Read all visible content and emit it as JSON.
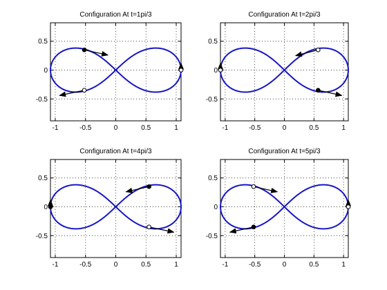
{
  "colors": {
    "curve": "#1515c8",
    "marker": "#000000",
    "axes": "#000000",
    "background": "#ffffff"
  },
  "chart_data": [
    {
      "type": "line",
      "title": "Configuration At t=1pi/3",
      "xlabel": "",
      "ylabel": "",
      "xlim": [
        -1.08,
        1.08
      ],
      "ylim": [
        -0.88,
        0.82
      ],
      "xticks": [
        -1,
        -0.5,
        0,
        0.5,
        1
      ],
      "xtick_labels": [
        "-1",
        "-0.5",
        "0",
        "0.5",
        "1"
      ],
      "yticks": [
        -0.5,
        0,
        0.5
      ],
      "ytick_labels": [
        "-0.5",
        "0",
        "0.5"
      ],
      "grid": true,
      "series": [
        {
          "curve": "lemniscate",
          "a": 1.08
        }
      ],
      "points": [
        {
          "x": -0.52,
          "y": 0.35,
          "filled": true,
          "vx": 0.39,
          "vy": -0.09
        },
        {
          "x": -0.52,
          "y": -0.35,
          "filled": false,
          "vx": -0.41,
          "vy": -0.09
        },
        {
          "x": 1.08,
          "y": 0.0,
          "filled": false,
          "vx": 0.0,
          "vy": 0.12
        }
      ]
    },
    {
      "type": "line",
      "title": "Configuration At t=2pi/3",
      "xlabel": "",
      "ylabel": "",
      "xlim": [
        -1.08,
        1.08
      ],
      "ylim": [
        -0.88,
        0.82
      ],
      "xticks": [
        -1,
        -0.5,
        0,
        0.5,
        1
      ],
      "xtick_labels": [
        "-1",
        "-0.5",
        "0",
        "0.5",
        "1"
      ],
      "yticks": [
        -0.5,
        0,
        0.5
      ],
      "ytick_labels": [
        "-0.5",
        "0",
        "0.5"
      ],
      "grid": true,
      "series": [
        {
          "curve": "lemniscate",
          "a": 1.08
        }
      ],
      "points": [
        {
          "x": 0.57,
          "y": 0.35,
          "filled": false,
          "vx": -0.38,
          "vy": -0.1
        },
        {
          "x": 0.57,
          "y": -0.35,
          "filled": true,
          "vx": 0.4,
          "vy": -0.09
        },
        {
          "x": -1.08,
          "y": 0.0,
          "filled": false,
          "vx": 0.0,
          "vy": 0.12
        }
      ]
    },
    {
      "type": "line",
      "title": "Configuration At t=4pi/3",
      "xlabel": "",
      "ylabel": "",
      "xlim": [
        -1.08,
        1.08
      ],
      "ylim": [
        -0.88,
        0.82
      ],
      "xticks": [
        -1,
        -0.5,
        0,
        0.5,
        1
      ],
      "xtick_labels": [
        "-1",
        "-0.5",
        "0",
        "0.5",
        "1"
      ],
      "yticks": [
        -0.5,
        0,
        0.5
      ],
      "ytick_labels": [
        "-0.5",
        "0",
        "0.5"
      ],
      "grid": true,
      "series": [
        {
          "curve": "lemniscate",
          "a": 1.08
        }
      ],
      "points": [
        {
          "x": 0.55,
          "y": 0.35,
          "filled": true,
          "vx": -0.38,
          "vy": -0.09
        },
        {
          "x": 0.55,
          "y": -0.35,
          "filled": false,
          "vx": 0.41,
          "vy": -0.09
        },
        {
          "x": -1.08,
          "y": 0.0,
          "filled": true,
          "vx": 0.0,
          "vy": 0.12
        }
      ]
    },
    {
      "type": "line",
      "title": "Configuration At t=5pi/3",
      "xlabel": "",
      "ylabel": "",
      "xlim": [
        -1.08,
        1.08
      ],
      "ylim": [
        -0.88,
        0.82
      ],
      "xticks": [
        -1,
        -0.5,
        0,
        0.5,
        1
      ],
      "xtick_labels": [
        "-1",
        "-0.5",
        "0",
        "0.5",
        "1"
      ],
      "yticks": [
        -0.5,
        0,
        0.5
      ],
      "ytick_labels": [
        "-0.5",
        "0",
        "0.5"
      ],
      "grid": true,
      "series": [
        {
          "curve": "lemniscate",
          "a": 1.08
        }
      ],
      "points": [
        {
          "x": -0.52,
          "y": 0.35,
          "filled": false,
          "vx": 0.4,
          "vy": -0.09
        },
        {
          "x": -0.52,
          "y": -0.35,
          "filled": true,
          "vx": -0.4,
          "vy": -0.09
        },
        {
          "x": 1.08,
          "y": 0.0,
          "filled": false,
          "vx": 0.0,
          "vy": 0.12
        }
      ]
    }
  ]
}
